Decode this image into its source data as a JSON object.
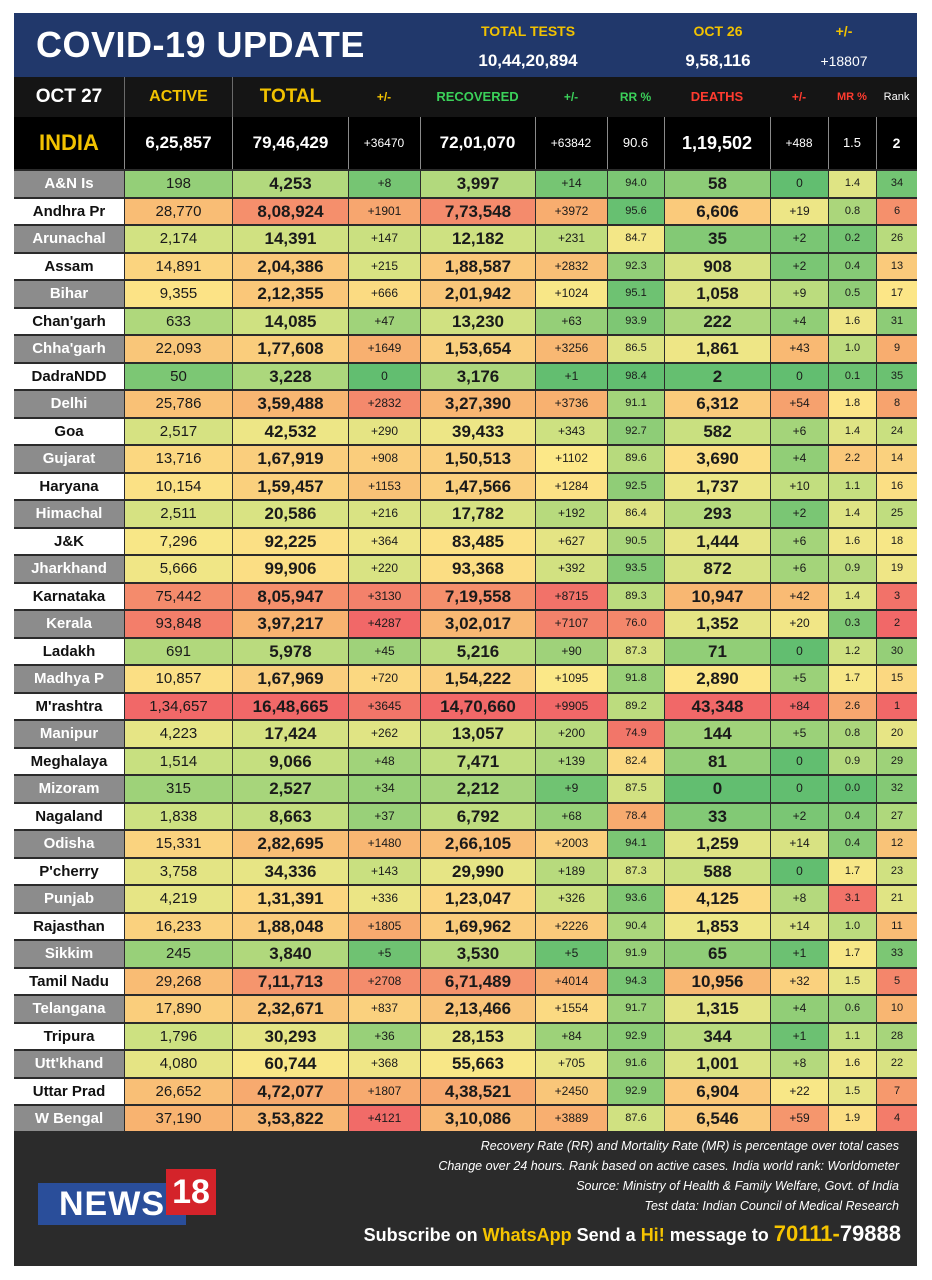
{
  "header": {
    "title": "COVID-19 UPDATE",
    "total_tests_label": "TOTAL TESTS",
    "total_tests_value": "10,44,20,894",
    "date_label": "OCT 26",
    "date_value": "9,58,116",
    "change_label": "+/-",
    "change_value": "+18807"
  },
  "columns": {
    "date": "OCT 27",
    "active": "ACTIVE",
    "total": "TOTAL",
    "total_change": "+/-",
    "recovered": "RECOVERED",
    "recovered_change": "+/-",
    "rr": "RR %",
    "deaths": "DEATHS",
    "deaths_change": "+/-",
    "mr": "MR %",
    "rank": "Rank"
  },
  "india": {
    "name": "INDIA",
    "active": "6,25,857",
    "total": "79,46,429",
    "total_change": "+36470",
    "recovered": "72,01,070",
    "recovered_change": "+63842",
    "rr": "90.6",
    "deaths": "1,19,502",
    "deaths_change": "+488",
    "mr": "1.5",
    "rank": "2"
  },
  "states": [
    {
      "name": "A&N Is",
      "active": "198",
      "total": "4,253",
      "tc": "+8",
      "recovered": "3,997",
      "rc": "+14",
      "rr": "94.0",
      "deaths": "58",
      "dc": "0",
      "mr": "1.4",
      "rank": "34"
    },
    {
      "name": "Andhra Pr",
      "active": "28,770",
      "total": "8,08,924",
      "tc": "+1901",
      "recovered": "7,73,548",
      "rc": "+3972",
      "rr": "95.6",
      "deaths": "6,606",
      "dc": "+19",
      "mr": "0.8",
      "rank": "6"
    },
    {
      "name": "Arunachal",
      "active": "2,174",
      "total": "14,391",
      "tc": "+147",
      "recovered": "12,182",
      "rc": "+231",
      "rr": "84.7",
      "deaths": "35",
      "dc": "+2",
      "mr": "0.2",
      "rank": "26"
    },
    {
      "name": "Assam",
      "active": "14,891",
      "total": "2,04,386",
      "tc": "+215",
      "recovered": "1,88,587",
      "rc": "+2832",
      "rr": "92.3",
      "deaths": "908",
      "dc": "+2",
      "mr": "0.4",
      "rank": "13"
    },
    {
      "name": "Bihar",
      "active": "9,355",
      "total": "2,12,355",
      "tc": "+666",
      "recovered": "2,01,942",
      "rc": "+1024",
      "rr": "95.1",
      "deaths": "1,058",
      "dc": "+9",
      "mr": "0.5",
      "rank": "17"
    },
    {
      "name": "Chan'garh",
      "active": "633",
      "total": "14,085",
      "tc": "+47",
      "recovered": "13,230",
      "rc": "+63",
      "rr": "93.9",
      "deaths": "222",
      "dc": "+4",
      "mr": "1.6",
      "rank": "31"
    },
    {
      "name": "Chha'garh",
      "active": "22,093",
      "total": "1,77,608",
      "tc": "+1649",
      "recovered": "1,53,654",
      "rc": "+3256",
      "rr": "86.5",
      "deaths": "1,861",
      "dc": "+43",
      "mr": "1.0",
      "rank": "9"
    },
    {
      "name": "DadraNDD",
      "active": "50",
      "total": "3,228",
      "tc": "0",
      "recovered": "3,176",
      "rc": "+1",
      "rr": "98.4",
      "deaths": "2",
      "dc": "0",
      "mr": "0.1",
      "rank": "35"
    },
    {
      "name": "Delhi",
      "active": "25,786",
      "total": "3,59,488",
      "tc": "+2832",
      "recovered": "3,27,390",
      "rc": "+3736",
      "rr": "91.1",
      "deaths": "6,312",
      "dc": "+54",
      "mr": "1.8",
      "rank": "8"
    },
    {
      "name": "Goa",
      "active": "2,517",
      "total": "42,532",
      "tc": "+290",
      "recovered": "39,433",
      "rc": "+343",
      "rr": "92.7",
      "deaths": "582",
      "dc": "+6",
      "mr": "1.4",
      "rank": "24"
    },
    {
      "name": "Gujarat",
      "active": "13,716",
      "total": "1,67,919",
      "tc": "+908",
      "recovered": "1,50,513",
      "rc": "+1102",
      "rr": "89.6",
      "deaths": "3,690",
      "dc": "+4",
      "mr": "2.2",
      "rank": "14"
    },
    {
      "name": "Haryana",
      "active": "10,154",
      "total": "1,59,457",
      "tc": "+1153",
      "recovered": "1,47,566",
      "rc": "+1284",
      "rr": "92.5",
      "deaths": "1,737",
      "dc": "+10",
      "mr": "1.1",
      "rank": "16"
    },
    {
      "name": "Himachal",
      "active": "2,511",
      "total": "20,586",
      "tc": "+216",
      "recovered": "17,782",
      "rc": "+192",
      "rr": "86.4",
      "deaths": "293",
      "dc": "+2",
      "mr": "1.4",
      "rank": "25"
    },
    {
      "name": "J&K",
      "active": "7,296",
      "total": "92,225",
      "tc": "+364",
      "recovered": "83,485",
      "rc": "+627",
      "rr": "90.5",
      "deaths": "1,444",
      "dc": "+6",
      "mr": "1.6",
      "rank": "18"
    },
    {
      "name": "Jharkhand",
      "active": "5,666",
      "total": "99,906",
      "tc": "+220",
      "recovered": "93,368",
      "rc": "+392",
      "rr": "93.5",
      "deaths": "872",
      "dc": "+6",
      "mr": "0.9",
      "rank": "19"
    },
    {
      "name": "Karnataka",
      "active": "75,442",
      "total": "8,05,947",
      "tc": "+3130",
      "recovered": "7,19,558",
      "rc": "+8715",
      "rr": "89.3",
      "deaths": "10,947",
      "dc": "+42",
      "mr": "1.4",
      "rank": "3"
    },
    {
      "name": "Kerala",
      "active": "93,848",
      "total": "3,97,217",
      "tc": "+4287",
      "recovered": "3,02,017",
      "rc": "+7107",
      "rr": "76.0",
      "deaths": "1,352",
      "dc": "+20",
      "mr": "0.3",
      "rank": "2"
    },
    {
      "name": "Ladakh",
      "active": "691",
      "total": "5,978",
      "tc": "+45",
      "recovered": "5,216",
      "rc": "+90",
      "rr": "87.3",
      "deaths": "71",
      "dc": "0",
      "mr": "1.2",
      "rank": "30"
    },
    {
      "name": "Madhya P",
      "active": "10,857",
      "total": "1,67,969",
      "tc": "+720",
      "recovered": "1,54,222",
      "rc": "+1095",
      "rr": "91.8",
      "deaths": "2,890",
      "dc": "+5",
      "mr": "1.7",
      "rank": "15"
    },
    {
      "name": "M'rashtra",
      "active": "1,34,657",
      "total": "16,48,665",
      "tc": "+3645",
      "recovered": "14,70,660",
      "rc": "+9905",
      "rr": "89.2",
      "deaths": "43,348",
      "dc": "+84",
      "mr": "2.6",
      "rank": "1"
    },
    {
      "name": "Manipur",
      "active": "4,223",
      "total": "17,424",
      "tc": "+262",
      "recovered": "13,057",
      "rc": "+200",
      "rr": "74.9",
      "deaths": "144",
      "dc": "+5",
      "mr": "0.8",
      "rank": "20"
    },
    {
      "name": "Meghalaya",
      "active": "1,514",
      "total": "9,066",
      "tc": "+48",
      "recovered": "7,471",
      "rc": "+139",
      "rr": "82.4",
      "deaths": "81",
      "dc": "0",
      "mr": "0.9",
      "rank": "29"
    },
    {
      "name": "Mizoram",
      "active": "315",
      "total": "2,527",
      "tc": "+34",
      "recovered": "2,212",
      "rc": "+9",
      "rr": "87.5",
      "deaths": "0",
      "dc": "0",
      "mr": "0.0",
      "rank": "32"
    },
    {
      "name": "Nagaland",
      "active": "1,838",
      "total": "8,663",
      "tc": "+37",
      "recovered": "6,792",
      "rc": "+68",
      "rr": "78.4",
      "deaths": "33",
      "dc": "+2",
      "mr": "0.4",
      "rank": "27"
    },
    {
      "name": "Odisha",
      "active": "15,331",
      "total": "2,82,695",
      "tc": "+1480",
      "recovered": "2,66,105",
      "rc": "+2003",
      "rr": "94.1",
      "deaths": "1,259",
      "dc": "+14",
      "mr": "0.4",
      "rank": "12"
    },
    {
      "name": "P'cherry",
      "active": "3,758",
      "total": "34,336",
      "tc": "+143",
      "recovered": "29,990",
      "rc": "+189",
      "rr": "87.3",
      "deaths": "588",
      "dc": "0",
      "mr": "1.7",
      "rank": "23"
    },
    {
      "name": "Punjab",
      "active": "4,219",
      "total": "1,31,391",
      "tc": "+336",
      "recovered": "1,23,047",
      "rc": "+326",
      "rr": "93.6",
      "deaths": "4,125",
      "dc": "+8",
      "mr": "3.1",
      "rank": "21"
    },
    {
      "name": "Rajasthan",
      "active": "16,233",
      "total": "1,88,048",
      "tc": "+1805",
      "recovered": "1,69,962",
      "rc": "+2226",
      "rr": "90.4",
      "deaths": "1,853",
      "dc": "+14",
      "mr": "1.0",
      "rank": "11"
    },
    {
      "name": "Sikkim",
      "active": "245",
      "total": "3,840",
      "tc": "+5",
      "recovered": "3,530",
      "rc": "+5",
      "rr": "91.9",
      "deaths": "65",
      "dc": "+1",
      "mr": "1.7",
      "rank": "33"
    },
    {
      "name": "Tamil Nadu",
      "active": "29,268",
      "total": "7,11,713",
      "tc": "+2708",
      "recovered": "6,71,489",
      "rc": "+4014",
      "rr": "94.3",
      "deaths": "10,956",
      "dc": "+32",
      "mr": "1.5",
      "rank": "5"
    },
    {
      "name": "Telangana",
      "active": "17,890",
      "total": "2,32,671",
      "tc": "+837",
      "recovered": "2,13,466",
      "rc": "+1554",
      "rr": "91.7",
      "deaths": "1,315",
      "dc": "+4",
      "mr": "0.6",
      "rank": "10"
    },
    {
      "name": "Tripura",
      "active": "1,796",
      "total": "30,293",
      "tc": "+36",
      "recovered": "28,153",
      "rc": "+84",
      "rr": "92.9",
      "deaths": "344",
      "dc": "+1",
      "mr": "1.1",
      "rank": "28"
    },
    {
      "name": "Utt'khand",
      "active": "4,080",
      "total": "60,744",
      "tc": "+368",
      "recovered": "55,663",
      "rc": "+705",
      "rr": "91.6",
      "deaths": "1,001",
      "dc": "+8",
      "mr": "1.6",
      "rank": "22"
    },
    {
      "name": "Uttar Prad",
      "active": "26,652",
      "total": "4,72,077",
      "tc": "+1807",
      "recovered": "4,38,521",
      "rc": "+2450",
      "rr": "92.9",
      "deaths": "6,904",
      "dc": "+22",
      "mr": "1.5",
      "rank": "7"
    },
    {
      "name": "W Bengal",
      "active": "37,190",
      "total": "3,53,822",
      "tc": "+4121",
      "recovered": "3,10,086",
      "rc": "+3889",
      "rr": "87.6",
      "deaths": "6,546",
      "dc": "+59",
      "mr": "1.9",
      "rank": "4"
    }
  ],
  "footer": {
    "note1": "Recovery Rate (RR) and Mortality Rate (MR) is percentage over total cases",
    "note2": "Change over 24 hours. Rank based on active cases. India world rank: Worldometer",
    "note3": "Source: Ministry of Health & Family Welfare, Govt. of India",
    "note4": "Test data: Indian Council of Medical Research",
    "logo_text": "NEWS",
    "logo_number": "18",
    "subscribe_prefix": "Subscribe on ",
    "subscribe_app": "WhatsApp",
    "subscribe_mid": " Send a ",
    "subscribe_hi": "Hi!",
    "subscribe_suffix": " message to ",
    "phone_part1": "70111-",
    "phone_part2": "79888"
  },
  "colors": {
    "header_bg": "#21386b",
    "header_label": "#f2c200",
    "active_label": "#f2c200",
    "recovered_label": "#3bd15a",
    "deaths_label": "#ff3b2f",
    "name_odd_bg": "#8c8c8c",
    "name_even_bg": "#ffffff",
    "whatsapp_yellow": "#f5c400",
    "logo_blue": "#2a4e9a",
    "logo_red": "#d4232a"
  }
}
